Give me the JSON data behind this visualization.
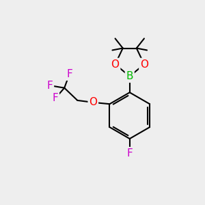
{
  "background_color": "#eeeeee",
  "bond_color": "#000000",
  "bond_width": 1.5,
  "atom_colors": {
    "B": "#00bb00",
    "O": "#ff0000",
    "F": "#cc00cc",
    "C": "#000000"
  },
  "font_size_atoms": 11,
  "font_size_methyl": 9
}
